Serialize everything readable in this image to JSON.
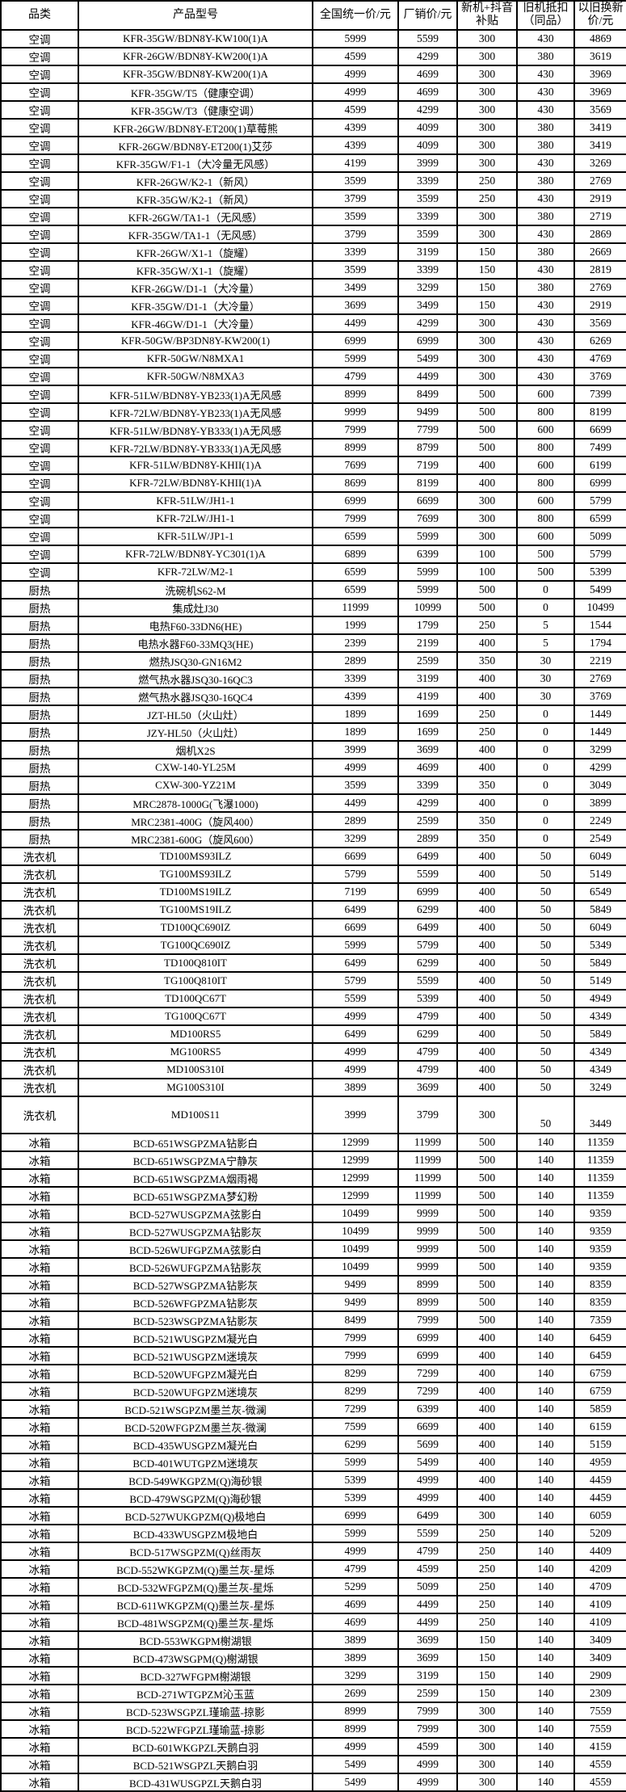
{
  "header": {
    "columns": [
      "品类",
      "产品型号",
      "全国统一价/元",
      "厂销价/元",
      "新机+抖音补贴",
      "旧机抵扣（同品）",
      "以旧换新价/元"
    ]
  },
  "tall_rows": [
    60
  ],
  "rows": [
    [
      "空调",
      "KFR-35GW/BDN8Y-KW100(1)A",
      "5999",
      "5599",
      "300",
      "430",
      "4869"
    ],
    [
      "空调",
      "KFR-26GW/BDN8Y-KW200(1)A",
      "4599",
      "4299",
      "300",
      "380",
      "3619"
    ],
    [
      "空调",
      "KFR-35GW/BDN8Y-KW200(1)A",
      "4999",
      "4699",
      "300",
      "430",
      "3969"
    ],
    [
      "空调",
      "KFR-35GW/T5（健康空调）",
      "4999",
      "4699",
      "300",
      "430",
      "3969"
    ],
    [
      "空调",
      "KFR-35GW/T3（健康空调）",
      "4599",
      "4299",
      "300",
      "430",
      "3569"
    ],
    [
      "空调",
      "KFR-26GW/BDN8Y-ET200(1)草莓熊",
      "4399",
      "4099",
      "300",
      "380",
      "3419"
    ],
    [
      "空调",
      "KFR-26GW/BDN8Y-ET200(1)艾莎",
      "4399",
      "4099",
      "300",
      "380",
      "3419"
    ],
    [
      "空调",
      "KFR-35GW/F1-1（大冷量无风感）",
      "4199",
      "3999",
      "300",
      "430",
      "3269"
    ],
    [
      "空调",
      "KFR-26GW/K2-1（新风）",
      "3599",
      "3399",
      "250",
      "380",
      "2769"
    ],
    [
      "空调",
      "KFR-35GW/K2-1（新风）",
      "3799",
      "3599",
      "250",
      "430",
      "2919"
    ],
    [
      "空调",
      "KFR-26GW/TA1-1（无风感）",
      "3599",
      "3399",
      "300",
      "380",
      "2719"
    ],
    [
      "空调",
      "KFR-35GW/TA1-1（无风感）",
      "3799",
      "3599",
      "300",
      "430",
      "2869"
    ],
    [
      "空调",
      "KFR-26GW/X1-1（旋耀）",
      "3399",
      "3199",
      "150",
      "380",
      "2669"
    ],
    [
      "空调",
      "KFR-35GW/X1-1（旋耀）",
      "3599",
      "3399",
      "150",
      "430",
      "2819"
    ],
    [
      "空调",
      "KFR-26GW/D1-1（大冷量）",
      "3499",
      "3299",
      "150",
      "380",
      "2769"
    ],
    [
      "空调",
      "KFR-35GW/D1-1（大冷量）",
      "3699",
      "3499",
      "150",
      "430",
      "2919"
    ],
    [
      "空调",
      "KFR-46GW/D1-1（大冷量）",
      "4499",
      "4299",
      "300",
      "430",
      "3569"
    ],
    [
      "空调",
      "KFR-50GW/BP3DN8Y-KW200(1)",
      "6999",
      "6999",
      "300",
      "430",
      "6269"
    ],
    [
      "空调",
      "KFR-50GW/N8MXA1",
      "5999",
      "5499",
      "300",
      "430",
      "4769"
    ],
    [
      "空调",
      "KFR-50GW/N8MXA3",
      "4799",
      "4499",
      "300",
      "430",
      "3769"
    ],
    [
      "空调",
      "KFR-51LW/BDN8Y-YB233(1)A无风感",
      "8999",
      "8499",
      "500",
      "600",
      "7399"
    ],
    [
      "空调",
      "KFR-72LW/BDN8Y-YB233(1)A无风感",
      "9999",
      "9499",
      "500",
      "800",
      "8199"
    ],
    [
      "空调",
      "KFR-51LW/BDN8Y-YB333(1)A无风感",
      "7999",
      "7799",
      "500",
      "600",
      "6699"
    ],
    [
      "空调",
      "KFR-72LW/BDN8Y-YB333(1)A无风感",
      "8999",
      "8799",
      "500",
      "800",
      "7499"
    ],
    [
      "空调",
      "KFR-51LW/BDN8Y-KHII(1)A",
      "7699",
      "7199",
      "400",
      "600",
      "6199"
    ],
    [
      "空调",
      "KFR-72LW/BDN8Y-KHII(1)A",
      "8699",
      "8199",
      "400",
      "800",
      "6999"
    ],
    [
      "空调",
      "KFR-51LW/JH1-1",
      "6999",
      "6699",
      "300",
      "600",
      "5799"
    ],
    [
      "空调",
      "KFR-72LW/JH1-1",
      "7999",
      "7699",
      "300",
      "800",
      "6599"
    ],
    [
      "空调",
      "KFR-51LW/JP1-1",
      "6599",
      "5999",
      "300",
      "600",
      "5099"
    ],
    [
      "空调",
      "KFR-72LW/BDN8Y-YC301(1)A",
      "6899",
      "6399",
      "100",
      "500",
      "5799"
    ],
    [
      "空调",
      "KFR-72LW/M2-1",
      "6599",
      "5999",
      "100",
      "500",
      "5399"
    ],
    [
      "厨热",
      "洗碗机S62-M",
      "6599",
      "5999",
      "500",
      "0",
      "5499"
    ],
    [
      "厨热",
      "集成灶J30",
      "11999",
      "10999",
      "500",
      "0",
      "10499"
    ],
    [
      "厨热",
      "电热F60-33DN6(HE)",
      "1999",
      "1799",
      "250",
      "5",
      "1544"
    ],
    [
      "厨热",
      "电热水器F60-33MQ3(HE)",
      "2399",
      "2199",
      "400",
      "5",
      "1794"
    ],
    [
      "厨热",
      "燃热JSQ30-GN16M2",
      "2899",
      "2599",
      "350",
      "30",
      "2219"
    ],
    [
      "厨热",
      "燃气热水器JSQ30-16QC3",
      "3399",
      "3199",
      "400",
      "30",
      "2769"
    ],
    [
      "厨热",
      "燃气热水器JSQ30-16QC4",
      "4399",
      "4199",
      "400",
      "30",
      "3769"
    ],
    [
      "厨热",
      "JZT-HL50（火山灶）",
      "1899",
      "1699",
      "250",
      "0",
      "1449"
    ],
    [
      "厨热",
      "JZY-HL50（火山灶）",
      "1899",
      "1699",
      "250",
      "0",
      "1449"
    ],
    [
      "厨热",
      "烟机X2S",
      "3999",
      "3699",
      "400",
      "0",
      "3299"
    ],
    [
      "厨热",
      "CXW-140-YL25M",
      "4999",
      "4699",
      "400",
      "0",
      "4299"
    ],
    [
      "厨热",
      "CXW-300-YZ21M",
      "3599",
      "3399",
      "350",
      "0",
      "3049"
    ],
    [
      "厨热",
      "MRC2878-1000G(飞瀑1000)",
      "4499",
      "4299",
      "400",
      "0",
      "3899"
    ],
    [
      "厨热",
      "MRC2381-400G（旋风400）",
      "2899",
      "2599",
      "350",
      "0",
      "2249"
    ],
    [
      "厨热",
      "MRC2381-600G（旋风600）",
      "3299",
      "2899",
      "350",
      "0",
      "2549"
    ],
    [
      "洗衣机",
      "TD100MS93ILZ",
      "6699",
      "6499",
      "400",
      "50",
      "6049"
    ],
    [
      "洗衣机",
      "TG100MS93ILZ",
      "5799",
      "5599",
      "400",
      "50",
      "5149"
    ],
    [
      "洗衣机",
      "TD100MS19ILZ",
      "7199",
      "6999",
      "400",
      "50",
      "6549"
    ],
    [
      "洗衣机",
      "TG100MS19ILZ",
      "6499",
      "6299",
      "400",
      "50",
      "5849"
    ],
    [
      "洗衣机",
      "TD100QC690IZ",
      "6699",
      "6499",
      "400",
      "50",
      "6049"
    ],
    [
      "洗衣机",
      "TG100QC690IZ",
      "5999",
      "5799",
      "400",
      "50",
      "5349"
    ],
    [
      "洗衣机",
      "TD100Q810IT",
      "6499",
      "6299",
      "400",
      "50",
      "5849"
    ],
    [
      "洗衣机",
      "TG100Q810IT",
      "5799",
      "5599",
      "400",
      "50",
      "5149"
    ],
    [
      "洗衣机",
      "TD100QC67T",
      "5599",
      "5399",
      "400",
      "50",
      "4949"
    ],
    [
      "洗衣机",
      "TG100QC67T",
      "4999",
      "4799",
      "400",
      "50",
      "4349"
    ],
    [
      "洗衣机",
      "MD100RS5",
      "6499",
      "6299",
      "400",
      "50",
      "5849"
    ],
    [
      "洗衣机",
      "MG100RS5",
      "4999",
      "4799",
      "400",
      "50",
      "4349"
    ],
    [
      "洗衣机",
      "MD100S310I",
      "4999",
      "4799",
      "400",
      "50",
      "4349"
    ],
    [
      "洗衣机",
      "MG100S310I",
      "3899",
      "3699",
      "400",
      "50",
      "3249"
    ],
    [
      "洗衣机",
      "MD100S11",
      "3999",
      "3799",
      "300",
      "50",
      "3449"
    ],
    [
      "冰箱",
      "BCD-651WSGPZMA钻影白",
      "12999",
      "11999",
      "500",
      "140",
      "11359"
    ],
    [
      "冰箱",
      "BCD-651WSGPZMA宁静灰",
      "12999",
      "11999",
      "500",
      "140",
      "11359"
    ],
    [
      "冰箱",
      "BCD-651WSGPZMA烟雨褐",
      "12999",
      "11999",
      "500",
      "140",
      "11359"
    ],
    [
      "冰箱",
      "BCD-651WSGPZMA梦幻粉",
      "12999",
      "11999",
      "500",
      "140",
      "11359"
    ],
    [
      "冰箱",
      "BCD-527WUSGPZMA弦影白",
      "10499",
      "9999",
      "500",
      "140",
      "9359"
    ],
    [
      "冰箱",
      "BCD-527WUSGPZMA钻影灰",
      "10499",
      "9999",
      "500",
      "140",
      "9359"
    ],
    [
      "冰箱",
      "BCD-526WUFGPZMA弦影白",
      "10499",
      "9999",
      "500",
      "140",
      "9359"
    ],
    [
      "冰箱",
      "BCD-526WUFGPZMA钻影灰",
      "10499",
      "9999",
      "500",
      "140",
      "9359"
    ],
    [
      "冰箱",
      "BCD-527WSGPZMA钻影灰",
      "9499",
      "8999",
      "500",
      "140",
      "8359"
    ],
    [
      "冰箱",
      "BCD-526WFGPZMA钻影灰",
      "9499",
      "8999",
      "500",
      "140",
      "8359"
    ],
    [
      "冰箱",
      "BCD-523WSGPZMA钻影灰",
      "8499",
      "7999",
      "500",
      "140",
      "7359"
    ],
    [
      "冰箱",
      "BCD-521WUSGPZM凝光白",
      "7999",
      "6999",
      "400",
      "140",
      "6459"
    ],
    [
      "冰箱",
      "BCD-521WUSGPZM迷境灰",
      "7999",
      "6999",
      "400",
      "140",
      "6459"
    ],
    [
      "冰箱",
      "BCD-520WUFGPZM凝光白",
      "8299",
      "7299",
      "400",
      "140",
      "6759"
    ],
    [
      "冰箱",
      "BCD-520WUFGPZM迷境灰",
      "8299",
      "7299",
      "400",
      "140",
      "6759"
    ],
    [
      "冰箱",
      "BCD-521WSGPZM墨兰灰-微澜",
      "7299",
      "6399",
      "400",
      "140",
      "5859"
    ],
    [
      "冰箱",
      "BCD-520WFGPZM墨兰灰-微澜",
      "7599",
      "6699",
      "400",
      "140",
      "6159"
    ],
    [
      "冰箱",
      "BCD-435WUSGPZM凝光白",
      "6299",
      "5699",
      "400",
      "140",
      "5159"
    ],
    [
      "冰箱",
      "BCD-401WUTGPZM迷境灰",
      "5999",
      "5499",
      "400",
      "140",
      "4959"
    ],
    [
      "冰箱",
      "BCD-549WKGPZM(Q)海砂银",
      "5399",
      "4999",
      "400",
      "140",
      "4459"
    ],
    [
      "冰箱",
      "BCD-479WSGPZM(Q)海砂银",
      "5399",
      "4999",
      "400",
      "140",
      "4459"
    ],
    [
      "冰箱",
      "BCD-527WUKGPZM(Q)极地白",
      "6999",
      "6499",
      "300",
      "140",
      "6059"
    ],
    [
      "冰箱",
      "BCD-433WUSGPZM极地白",
      "5999",
      "5599",
      "250",
      "140",
      "5209"
    ],
    [
      "冰箱",
      "BCD-517WSGPZM(Q)丝雨灰",
      "4999",
      "4799",
      "250",
      "140",
      "4409"
    ],
    [
      "冰箱",
      "BCD-552WKGPZM(Q)墨兰灰-星烁",
      "4799",
      "4599",
      "250",
      "140",
      "4209"
    ],
    [
      "冰箱",
      "BCD-532WFGPZM(Q)墨兰灰-星烁",
      "5299",
      "5099",
      "250",
      "140",
      "4709"
    ],
    [
      "冰箱",
      "BCD-611WKGPZM(Q)墨兰灰-星烁",
      "4699",
      "4499",
      "250",
      "140",
      "4109"
    ],
    [
      "冰箱",
      "BCD-481WSGPZM(Q)墨兰灰-星烁",
      "4699",
      "4499",
      "250",
      "140",
      "4109"
    ],
    [
      "冰箱",
      "BCD-553WKGPM榭湖银",
      "3899",
      "3699",
      "150",
      "140",
      "3409"
    ],
    [
      "冰箱",
      "BCD-473WSGPM(Q)榭湖银",
      "3899",
      "3699",
      "150",
      "140",
      "3409"
    ],
    [
      "冰箱",
      "BCD-327WFGPM榭湖银",
      "3299",
      "3199",
      "150",
      "140",
      "2909"
    ],
    [
      "冰箱",
      "BCD-271WTGPZM沁玉蓝",
      "2699",
      "2599",
      "150",
      "140",
      "2309"
    ],
    [
      "冰箱",
      "BCD-523WSGPZL瑾瑜蓝-掠影",
      "8999",
      "7999",
      "300",
      "140",
      "7559"
    ],
    [
      "冰箱",
      "BCD-522WFGPZL瑾瑜蓝-掠影",
      "8999",
      "7999",
      "300",
      "140",
      "7559"
    ],
    [
      "冰箱",
      "BCD-601WKGPZL天鹅白羽",
      "4999",
      "4599",
      "300",
      "140",
      "4159"
    ],
    [
      "冰箱",
      "BCD-521WSGPZL天鹅白羽",
      "5499",
      "4999",
      "300",
      "140",
      "4559"
    ],
    [
      "冰箱",
      "BCD-431WUSGPZL天鹅白羽",
      "5499",
      "4999",
      "300",
      "140",
      "4559"
    ]
  ]
}
